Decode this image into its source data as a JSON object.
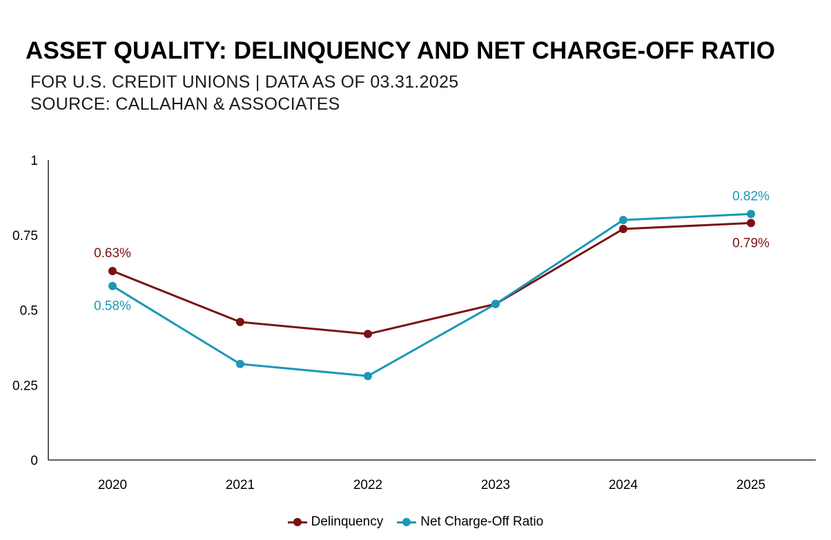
{
  "chart_data": {
    "type": "line",
    "title": "ASSET QUALITY: DELINQUENCY AND NET CHARGE-OFF RATIO",
    "subtitle_lines": [
      "FOR U.S. CREDIT UNIONS | DATA AS OF 03.31.2025",
      "SOURCE: CALLAHAN & ASSOCIATES"
    ],
    "categories": [
      "2020",
      "2021",
      "2022",
      "2023",
      "2024",
      "2025"
    ],
    "ylim": [
      0,
      1
    ],
    "yticks": [
      0,
      0.25,
      0.5,
      0.75,
      1
    ],
    "ytick_labels": [
      "0",
      "0.25",
      "0.5",
      "0.75",
      "1"
    ],
    "xlabel": "",
    "ylabel": "",
    "grid": false,
    "legend_position": "bottom",
    "series": [
      {
        "name": "Delinquency",
        "color": "#7a1212",
        "values": [
          0.63,
          0.46,
          0.42,
          0.52,
          0.77,
          0.79
        ],
        "labels": [
          {
            "index": 0,
            "text": "0.63%",
            "placement": "above"
          },
          {
            "index": 5,
            "text": "0.79%",
            "placement": "below"
          }
        ]
      },
      {
        "name": "Net Charge-Off Ratio",
        "color": "#1a98b7",
        "values": [
          0.58,
          0.32,
          0.28,
          0.52,
          0.8,
          0.82
        ],
        "labels": [
          {
            "index": 0,
            "text": "0.58%",
            "placement": "below"
          },
          {
            "index": 5,
            "text": "0.82%",
            "placement": "above"
          }
        ]
      }
    ]
  }
}
